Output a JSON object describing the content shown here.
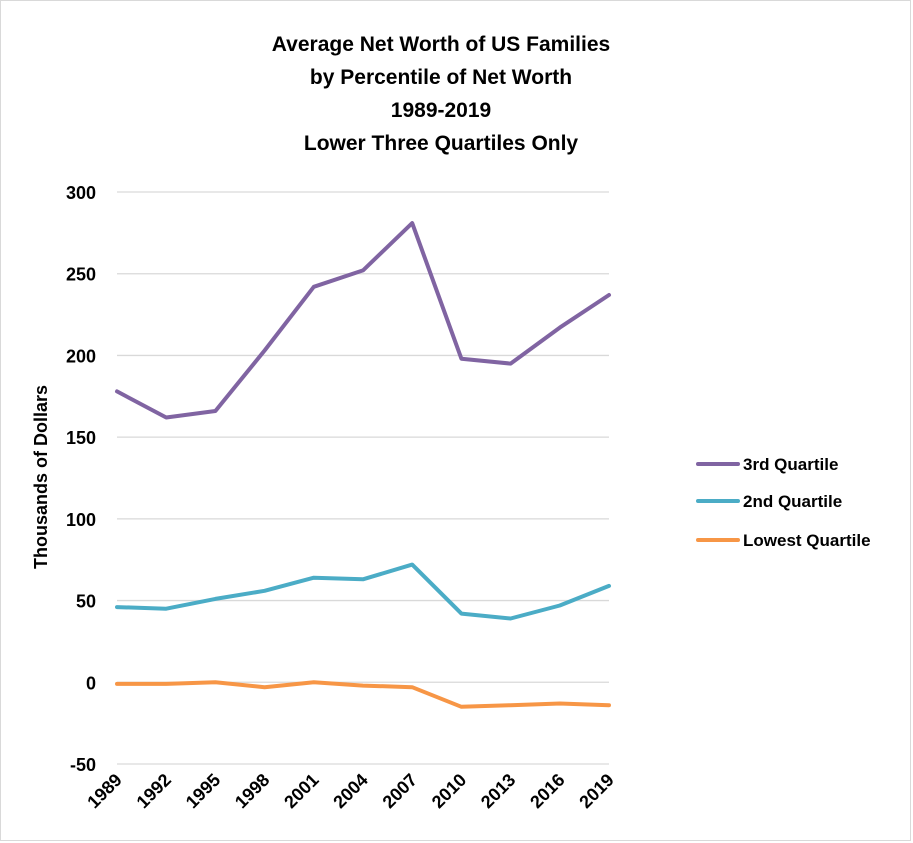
{
  "chart_data": {
    "type": "line",
    "title_lines": [
      "Average Net Worth of US Families",
      "by Percentile of Net Worth",
      "1989-2019",
      "Lower Three Quartiles Only"
    ],
    "xlabel": "",
    "ylabel": "Thousands of Dollars",
    "ylim": [
      -50,
      300
    ],
    "yticks": [
      300,
      250,
      200,
      150,
      100,
      50,
      0,
      -50
    ],
    "categories": [
      "1989",
      "1992",
      "1995",
      "1998",
      "2001",
      "2004",
      "2007",
      "2010",
      "2013",
      "2016",
      "2019"
    ],
    "grid": true,
    "legend_position": "right",
    "series": [
      {
        "name": "3rd Quartile",
        "color": "#8064a2",
        "values": [
          178,
          162,
          166,
          203,
          242,
          252,
          281,
          198,
          195,
          217,
          237
        ]
      },
      {
        "name": "2nd Quartile",
        "color": "#4bacc6",
        "values": [
          46,
          45,
          51,
          56,
          64,
          63,
          72,
          42,
          39,
          47,
          59
        ]
      },
      {
        "name": "Lowest Quartile",
        "color": "#f79646",
        "values": [
          -1,
          -1,
          0,
          -3,
          0,
          -2,
          -3,
          -15,
          -14,
          -13,
          -14
        ]
      }
    ]
  }
}
